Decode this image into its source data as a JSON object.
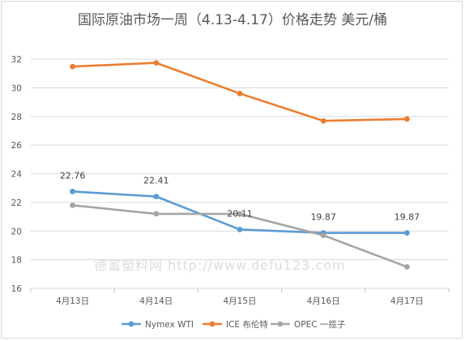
{
  "chart_data": {
    "type": "line",
    "title": "国际原油市场一周（4.13-4.17）价格走势   美元/桶",
    "categories": [
      "4月13日",
      "4月14日",
      "4月15日",
      "4月16日",
      "4月17日"
    ],
    "ylim": [
      16,
      32
    ],
    "yticks": [
      16,
      18,
      20,
      22,
      24,
      26,
      28,
      30,
      32
    ],
    "grid": true,
    "legend_position": "bottom",
    "series": [
      {
        "name": "Nymex WTI",
        "color": "#5b9bd5",
        "values": [
          22.76,
          22.41,
          20.11,
          19.87,
          19.87
        ],
        "data_labels": [
          "22.76",
          "22.41",
          "20.11",
          "19.87",
          "19.87"
        ]
      },
      {
        "name": "ICE 布伦特",
        "color": "#ed7d31",
        "values": [
          31.48,
          31.74,
          29.6,
          27.69,
          27.82
        ]
      },
      {
        "name": "OPEC 一揽子",
        "color": "#a5a5a5",
        "values": [
          21.8,
          21.2,
          21.2,
          19.7,
          17.5
        ]
      }
    ]
  },
  "watermark": "德富塑料网   http://www.defu123.com"
}
